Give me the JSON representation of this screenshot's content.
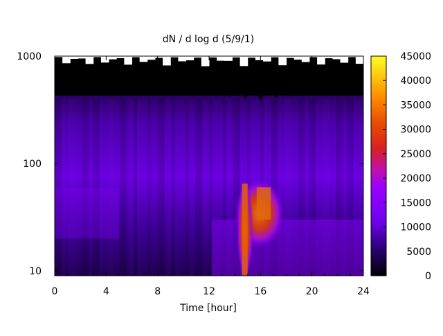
{
  "chart_data": {
    "type": "heatmap",
    "title": "dN / d log d (5/9/1)",
    "xlabel": "Time [hour]",
    "ylabel": "",
    "xlim": [
      0,
      24
    ],
    "ylim": [
      9,
      1000
    ],
    "y_scale": "log",
    "x_ticks": [
      0,
      4,
      8,
      12,
      16,
      20,
      24
    ],
    "x_tick_labels": [
      "0",
      "4",
      "8",
      "12",
      "16",
      "20",
      "24"
    ],
    "y_ticks": [
      10,
      100,
      1000
    ],
    "y_tick_labels": [
      "10",
      "100",
      "1000"
    ],
    "colorbar": {
      "range": [
        0,
        45000
      ],
      "ticks": [
        0,
        5000,
        10000,
        15000,
        20000,
        25000,
        30000,
        35000,
        40000,
        45000
      ],
      "tick_labels": [
        "0",
        "5000",
        "10000",
        "15000",
        "20000",
        "25000",
        "30000",
        "35000",
        "40000",
        "45000"
      ],
      "colormap": [
        "#000000",
        "#3a0090",
        "#8a00ff",
        "#c020c0",
        "#e03000",
        "#ff8000",
        "#ffff00"
      ]
    },
    "description_free": true,
    "features": [
      {
        "x": [
          14.4,
          17.4
        ],
        "y": [
          18,
          65
        ],
        "value": 28000
      },
      {
        "x": [
          14.6,
          15.0
        ],
        "y": [
          9,
          65
        ],
        "value": 32000
      }
    ]
  }
}
